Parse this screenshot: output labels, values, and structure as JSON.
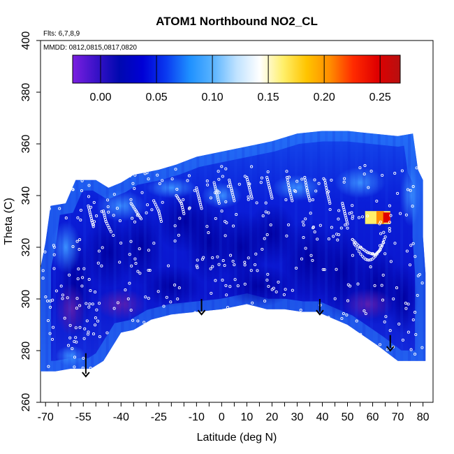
{
  "chart_data": {
    "type": "heatmap",
    "title": "ATOM1 Northbound NO2_CL",
    "flights_label": "Flts: 6,7,8,9",
    "dates_label": "MMDD: 0812,0815,0817,0820",
    "xlabel": "Latitude (deg N)",
    "ylabel": "Theta (C)",
    "xlim": [
      -72,
      84
    ],
    "ylim": [
      260,
      400
    ],
    "x_ticks": [
      -70,
      -55,
      -40,
      -25,
      -10,
      0,
      10,
      20,
      30,
      40,
      50,
      60,
      70,
      80
    ],
    "x_tick_labels": [
      "-70",
      "-55",
      "-40",
      "-25",
      "-10",
      "0",
      "10",
      "20",
      "30",
      "40",
      "50",
      "60",
      "70",
      "80"
    ],
    "x_minor_ticks": [
      -65,
      -60,
      -50,
      -45,
      -35,
      -30,
      -20,
      -15,
      -5,
      5,
      15,
      25,
      35,
      45,
      55,
      65,
      75
    ],
    "y_ticks": [
      260,
      280,
      300,
      320,
      340,
      360,
      380,
      400
    ],
    "y_tick_labels": [
      "260",
      "280",
      "300",
      "320",
      "340",
      "360",
      "380",
      "400"
    ],
    "colorbar": {
      "min": -0.025,
      "max": 0.268,
      "ticks": [
        0.0,
        0.05,
        0.1,
        0.15,
        0.2,
        0.25
      ],
      "tick_labels": [
        "0.00",
        "0.05",
        "0.10",
        "0.15",
        "0.20",
        "0.25"
      ],
      "colors": [
        "#7b1fe0",
        "#3a12c8",
        "#0008b0",
        "#0000d6",
        "#0a3af0",
        "#1e90ff",
        "#5ab4ff",
        "#bfe2ff",
        "#ffffff",
        "#ffef6a",
        "#ffc400",
        "#ff8c00",
        "#ff2a00",
        "#e00000",
        "#b71010"
      ]
    },
    "boundary_top": [
      [
        -72,
        312
      ],
      [
        -70,
        322
      ],
      [
        -68,
        336
      ],
      [
        -62,
        337
      ],
      [
        -58,
        346
      ],
      [
        -50,
        346
      ],
      [
        -45,
        343
      ],
      [
        -40,
        345
      ],
      [
        -35,
        348
      ],
      [
        -25,
        350
      ],
      [
        -18,
        352
      ],
      [
        -10,
        355
      ],
      [
        0,
        357
      ],
      [
        10,
        359
      ],
      [
        20,
        361
      ],
      [
        30,
        364
      ],
      [
        40,
        365
      ],
      [
        50,
        365
      ],
      [
        60,
        364
      ],
      [
        70,
        363
      ],
      [
        76,
        364
      ],
      [
        78,
        350
      ],
      [
        80,
        346
      ],
      [
        80,
        324
      ],
      [
        81,
        310
      ]
    ],
    "boundary_bottom": [
      [
        81,
        276
      ],
      [
        75,
        276
      ],
      [
        70,
        276
      ],
      [
        62,
        282
      ],
      [
        50,
        290
      ],
      [
        38,
        295
      ],
      [
        32,
        295
      ],
      [
        25,
        296
      ],
      [
        18,
        296
      ],
      [
        10,
        298
      ],
      [
        0,
        296
      ],
      [
        -10,
        295
      ],
      [
        -20,
        294
      ],
      [
        -28,
        292
      ],
      [
        -35,
        288
      ],
      [
        -40,
        287
      ],
      [
        -47,
        276
      ],
      [
        -52,
        273
      ],
      [
        -60,
        273
      ],
      [
        -66,
        272
      ],
      [
        -70,
        272
      ],
      [
        -72,
        272
      ]
    ],
    "arrows": [
      {
        "lat": -54,
        "theta_top": 279,
        "theta_bottom": 270
      },
      {
        "lat": -8,
        "theta_top": 300,
        "theta_bottom": 294
      },
      {
        "lat": 39,
        "theta_top": 300,
        "theta_bottom": 294
      },
      {
        "lat": 67,
        "theta_top": 286,
        "theta_bottom": 280
      }
    ],
    "hotspot": {
      "lat_min": 57,
      "lat_max": 67,
      "theta_min": 329,
      "theta_max": 334
    },
    "ridge_paths": [
      [
        [
          -53,
          336
        ],
        [
          -52,
          332
        ],
        [
          -51,
          328
        ]
      ],
      [
        [
          -47,
          334
        ],
        [
          -46,
          330
        ],
        [
          -44,
          326
        ]
      ],
      [
        [
          -36,
          337
        ],
        [
          -34,
          334
        ],
        [
          -32,
          331
        ]
      ],
      [
        [
          -27,
          338
        ],
        [
          -25,
          334
        ],
        [
          -24,
          330
        ]
      ],
      [
        [
          -18,
          340
        ],
        [
          -16,
          337
        ],
        [
          -15,
          333
        ]
      ],
      [
        [
          -10,
          343
        ],
        [
          -9,
          339
        ],
        [
          -8,
          335
        ]
      ],
      [
        [
          -3,
          345
        ],
        [
          -2,
          341
        ],
        [
          -1,
          337
        ]
      ],
      [
        [
          3,
          346
        ],
        [
          4,
          342
        ],
        [
          5,
          338
        ]
      ],
      [
        [
          10,
          347
        ],
        [
          11,
          343
        ],
        [
          12,
          339
        ]
      ],
      [
        [
          18,
          347
        ],
        [
          19,
          343
        ],
        [
          20,
          339
        ]
      ],
      [
        [
          26,
          347
        ],
        [
          27,
          342
        ],
        [
          28,
          338
        ]
      ],
      [
        [
          33,
          347
        ],
        [
          34,
          342
        ],
        [
          35,
          338
        ]
      ],
      [
        [
          41,
          346
        ],
        [
          42,
          341
        ],
        [
          43,
          337
        ]
      ],
      [
        [
          48,
          337
        ],
        [
          49,
          333
        ],
        [
          50,
          329
        ]
      ],
      [
        [
          52,
          323
        ],
        [
          55,
          320
        ],
        [
          58,
          318
        ],
        [
          61,
          317
        ],
        [
          63,
          319
        ],
        [
          65,
          324
        ]
      ]
    ]
  }
}
